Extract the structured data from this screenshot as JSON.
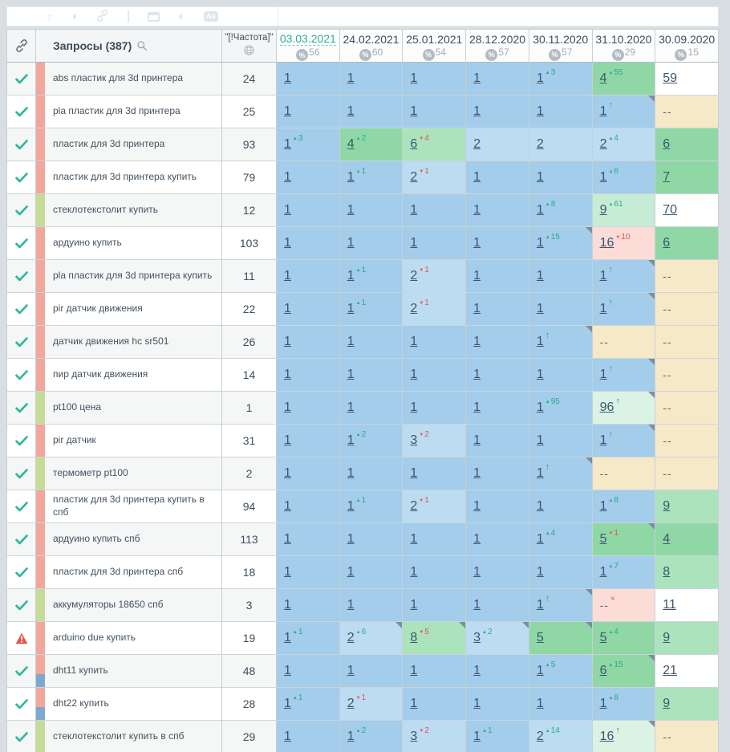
{
  "colors": {
    "accent_teal": "#2fae92",
    "delta_up": "#2aa98b",
    "delta_down": "#e0564a",
    "pos_top1": "#a3cdea",
    "pos_top3": "#bcdcf2",
    "pos_top10": "#8fd8a6",
    "not_found": "#f6e9c8",
    "dropped": "#fbdcd6",
    "tag_salmon": "#f2a79d",
    "tag_green": "#c6dc96",
    "tag_blue": "#7fa8cd"
  },
  "toolbar": {
    "icons": [
      "sort-icon",
      "circle-icon",
      "link-icon",
      "divider",
      "panel-icon",
      "contrast-icon",
      "text-case-icon"
    ],
    "sort_glyph": "↓↑",
    "circle_glyph": "◑",
    "contrast_glyph": "◐",
    "text_case_glyph": "Aa"
  },
  "header": {
    "queries_title": "Запросы (387)",
    "frequency_label": "\"[!Частота]\"",
    "dates": [
      {
        "label": "03.03.2021",
        "percent": "56",
        "selected": true
      },
      {
        "label": "24.02.2021",
        "percent": "60",
        "selected": false
      },
      {
        "label": "25.01.2021",
        "percent": "54",
        "selected": false
      },
      {
        "label": "28.12.2020",
        "percent": "57",
        "selected": false
      },
      {
        "label": "30.11.2020",
        "percent": "57",
        "selected": false
      },
      {
        "label": "31.10.2020",
        "percent": "29",
        "selected": false
      },
      {
        "label": "30.09.2020",
        "percent": "15",
        "selected": false
      }
    ]
  },
  "rows": [
    {
      "status": "check",
      "tags": [
        "salmon"
      ],
      "keyword": "abs пластик для 3d принтера",
      "frequency": "24",
      "cells": [
        {
          "value": "1",
          "bg": "blue"
        },
        {
          "value": "1",
          "bg": "blue"
        },
        {
          "value": "1",
          "bg": "blue"
        },
        {
          "value": "1",
          "bg": "blue"
        },
        {
          "value": "1",
          "bg": "blue",
          "delta": "3",
          "dir": "up"
        },
        {
          "value": "4",
          "bg": "green",
          "delta": "55",
          "dir": "up"
        },
        {
          "value": "59",
          "bg": "white"
        }
      ]
    },
    {
      "status": "check",
      "tags": [
        "salmon"
      ],
      "keyword": "pla пластик для 3d принтера",
      "frequency": "25",
      "cells": [
        {
          "value": "1",
          "bg": "blue"
        },
        {
          "value": "1",
          "bg": "blue"
        },
        {
          "value": "1",
          "bg": "blue"
        },
        {
          "value": "1",
          "bg": "blue"
        },
        {
          "value": "1",
          "bg": "blue"
        },
        {
          "value": "1",
          "bg": "blue",
          "arrow": "teal",
          "note": true
        },
        {
          "value": "--",
          "bg": "tan"
        }
      ]
    },
    {
      "status": "check",
      "tags": [
        "salmon"
      ],
      "keyword": "пластик для 3d принтера",
      "frequency": "93",
      "cells": [
        {
          "value": "1",
          "bg": "blue",
          "delta": "3",
          "dir": "up"
        },
        {
          "value": "4",
          "bg": "green",
          "delta": "2",
          "dir": "up"
        },
        {
          "value": "6",
          "bg": "lightgreen",
          "delta": "4",
          "dir": "down"
        },
        {
          "value": "2",
          "bg": "lightblue"
        },
        {
          "value": "2",
          "bg": "lightblue"
        },
        {
          "value": "2",
          "bg": "lightblue",
          "delta": "4",
          "dir": "up"
        },
        {
          "value": "6",
          "bg": "green"
        }
      ]
    },
    {
      "status": "check",
      "tags": [
        "salmon"
      ],
      "keyword": "пластик для 3d принтера купить",
      "frequency": "79",
      "cells": [
        {
          "value": "1",
          "bg": "blue"
        },
        {
          "value": "1",
          "bg": "blue",
          "delta": "1",
          "dir": "up"
        },
        {
          "value": "2",
          "bg": "lightblue",
          "delta": "1",
          "dir": "down"
        },
        {
          "value": "1",
          "bg": "blue"
        },
        {
          "value": "1",
          "bg": "blue"
        },
        {
          "value": "1",
          "bg": "blue",
          "delta": "6",
          "dir": "up"
        },
        {
          "value": "7",
          "bg": "green"
        }
      ]
    },
    {
      "status": "check",
      "tags": [
        "green"
      ],
      "keyword": "стеклотекстолит купить",
      "frequency": "12",
      "cells": [
        {
          "value": "1",
          "bg": "blue"
        },
        {
          "value": "1",
          "bg": "blue"
        },
        {
          "value": "1",
          "bg": "blue"
        },
        {
          "value": "1",
          "bg": "blue"
        },
        {
          "value": "1",
          "bg": "blue",
          "delta": "8",
          "dir": "up"
        },
        {
          "value": "9",
          "bg": "mint",
          "delta": "61",
          "dir": "up"
        },
        {
          "value": "70",
          "bg": "white"
        }
      ]
    },
    {
      "status": "check",
      "tags": [
        "salmon"
      ],
      "keyword": "ардуино купить",
      "frequency": "103",
      "cells": [
        {
          "value": "1",
          "bg": "blue"
        },
        {
          "value": "1",
          "bg": "blue"
        },
        {
          "value": "1",
          "bg": "blue"
        },
        {
          "value": "1",
          "bg": "blue"
        },
        {
          "value": "1",
          "bg": "blue",
          "delta": "15",
          "dir": "up",
          "note": true
        },
        {
          "value": "16",
          "bg": "pink",
          "delta": "10",
          "dir": "down"
        },
        {
          "value": "6",
          "bg": "green"
        }
      ]
    },
    {
      "status": "check",
      "tags": [
        "salmon"
      ],
      "keyword": "pla пластик для 3d принтера купить",
      "frequency": "11",
      "cells": [
        {
          "value": "1",
          "bg": "blue"
        },
        {
          "value": "1",
          "bg": "blue",
          "delta": "1",
          "dir": "up"
        },
        {
          "value": "2",
          "bg": "lightblue",
          "delta": "1",
          "dir": "down"
        },
        {
          "value": "1",
          "bg": "blue"
        },
        {
          "value": "1",
          "bg": "blue"
        },
        {
          "value": "1",
          "bg": "blue",
          "arrow": "teal",
          "note": true
        },
        {
          "value": "--",
          "bg": "tan"
        }
      ]
    },
    {
      "status": "check",
      "tags": [
        "salmon"
      ],
      "keyword": "pir датчик движения",
      "frequency": "22",
      "cells": [
        {
          "value": "1",
          "bg": "blue"
        },
        {
          "value": "1",
          "bg": "blue",
          "delta": "1",
          "dir": "up"
        },
        {
          "value": "2",
          "bg": "lightblue",
          "delta": "1",
          "dir": "down"
        },
        {
          "value": "1",
          "bg": "blue"
        },
        {
          "value": "1",
          "bg": "blue"
        },
        {
          "value": "1",
          "bg": "blue",
          "arrow": "teal",
          "note": true
        },
        {
          "value": "--",
          "bg": "tan"
        }
      ]
    },
    {
      "status": "check",
      "tags": [
        "salmon"
      ],
      "keyword": "датчик движения hc sr501",
      "frequency": "26",
      "cells": [
        {
          "value": "1",
          "bg": "blue"
        },
        {
          "value": "1",
          "bg": "blue"
        },
        {
          "value": "1",
          "bg": "blue"
        },
        {
          "value": "1",
          "bg": "blue"
        },
        {
          "value": "1",
          "bg": "blue",
          "arrow": "teal",
          "note": true
        },
        {
          "value": "--",
          "bg": "tan"
        },
        {
          "value": "--",
          "bg": "tan"
        }
      ]
    },
    {
      "status": "check",
      "tags": [
        "salmon"
      ],
      "keyword": "пир датчик движения",
      "frequency": "14",
      "cells": [
        {
          "value": "1",
          "bg": "blue"
        },
        {
          "value": "1",
          "bg": "blue"
        },
        {
          "value": "1",
          "bg": "blue"
        },
        {
          "value": "1",
          "bg": "blue"
        },
        {
          "value": "1",
          "bg": "blue"
        },
        {
          "value": "1",
          "bg": "blue",
          "arrow": "teal",
          "note": true
        },
        {
          "value": "--",
          "bg": "tan"
        }
      ]
    },
    {
      "status": "check",
      "tags": [
        "green"
      ],
      "keyword": "pt100 цена",
      "frequency": "1",
      "cells": [
        {
          "value": "1",
          "bg": "blue"
        },
        {
          "value": "1",
          "bg": "blue"
        },
        {
          "value": "1",
          "bg": "blue"
        },
        {
          "value": "1",
          "bg": "blue"
        },
        {
          "value": "1",
          "bg": "blue",
          "delta": "95",
          "dir": "up"
        },
        {
          "value": "96",
          "bg": "palegreen",
          "arrow": "dark",
          "note": true
        },
        {
          "value": "--",
          "bg": "tan"
        }
      ]
    },
    {
      "status": "check",
      "tags": [
        "salmon"
      ],
      "keyword": "pir датчик",
      "frequency": "31",
      "cells": [
        {
          "value": "1",
          "bg": "blue"
        },
        {
          "value": "1",
          "bg": "blue",
          "delta": "2",
          "dir": "up"
        },
        {
          "value": "3",
          "bg": "lightblue",
          "delta": "2",
          "dir": "down"
        },
        {
          "value": "1",
          "bg": "blue"
        },
        {
          "value": "1",
          "bg": "blue"
        },
        {
          "value": "1",
          "bg": "blue",
          "arrow": "teal",
          "note": true
        },
        {
          "value": "--",
          "bg": "tan"
        }
      ]
    },
    {
      "status": "check",
      "tags": [
        "green"
      ],
      "keyword": "термометр pt100",
      "frequency": "2",
      "cells": [
        {
          "value": "1",
          "bg": "blue"
        },
        {
          "value": "1",
          "bg": "blue"
        },
        {
          "value": "1",
          "bg": "blue"
        },
        {
          "value": "1",
          "bg": "blue"
        },
        {
          "value": "1",
          "bg": "blue",
          "arrow": "teal",
          "note": true
        },
        {
          "value": "--",
          "bg": "tan"
        },
        {
          "value": "--",
          "bg": "tan"
        }
      ]
    },
    {
      "status": "check",
      "tags": [
        "salmon"
      ],
      "keyword": "пластик для 3d принтера купить в спб",
      "frequency": "94",
      "cells": [
        {
          "value": "1",
          "bg": "blue"
        },
        {
          "value": "1",
          "bg": "blue",
          "delta": "1",
          "dir": "up"
        },
        {
          "value": "2",
          "bg": "lightblue",
          "delta": "1",
          "dir": "down"
        },
        {
          "value": "1",
          "bg": "blue"
        },
        {
          "value": "1",
          "bg": "blue"
        },
        {
          "value": "1",
          "bg": "blue",
          "delta": "8",
          "dir": "up"
        },
        {
          "value": "9",
          "bg": "lightgreen"
        }
      ]
    },
    {
      "status": "check",
      "tags": [
        "salmon"
      ],
      "keyword": "ардуино купить спб",
      "frequency": "113",
      "cells": [
        {
          "value": "1",
          "bg": "blue"
        },
        {
          "value": "1",
          "bg": "blue"
        },
        {
          "value": "1",
          "bg": "blue"
        },
        {
          "value": "1",
          "bg": "blue"
        },
        {
          "value": "1",
          "bg": "blue",
          "delta": "4",
          "dir": "up"
        },
        {
          "value": "5",
          "bg": "green",
          "delta": "1",
          "dir": "down",
          "note": true
        },
        {
          "value": "4",
          "bg": "green"
        }
      ]
    },
    {
      "status": "check",
      "tags": [
        "salmon"
      ],
      "keyword": "пластик для 3d принтера спб",
      "frequency": "18",
      "cells": [
        {
          "value": "1",
          "bg": "blue"
        },
        {
          "value": "1",
          "bg": "blue"
        },
        {
          "value": "1",
          "bg": "blue"
        },
        {
          "value": "1",
          "bg": "blue"
        },
        {
          "value": "1",
          "bg": "blue"
        },
        {
          "value": "1",
          "bg": "blue",
          "delta": "7",
          "dir": "up"
        },
        {
          "value": "8",
          "bg": "lightgreen"
        }
      ]
    },
    {
      "status": "check",
      "tags": [
        "green"
      ],
      "keyword": "аккумуляторы 18650 спб",
      "frequency": "3",
      "cells": [
        {
          "value": "1",
          "bg": "blue"
        },
        {
          "value": "1",
          "bg": "blue"
        },
        {
          "value": "1",
          "bg": "blue"
        },
        {
          "value": "1",
          "bg": "blue"
        },
        {
          "value": "1",
          "bg": "blue",
          "arrow": "teal",
          "note": true
        },
        {
          "value": "--",
          "bg": "pink",
          "supx": true
        },
        {
          "value": "11",
          "bg": "white"
        }
      ]
    },
    {
      "status": "warning",
      "tags": [
        "salmon"
      ],
      "keyword": "arduino due купить",
      "frequency": "19",
      "cells": [
        {
          "value": "1",
          "bg": "blue",
          "delta": "1",
          "dir": "up"
        },
        {
          "value": "2",
          "bg": "lightblue",
          "delta": "6",
          "dir": "up",
          "note": true
        },
        {
          "value": "8",
          "bg": "lightgreen",
          "delta": "5",
          "dir": "down",
          "note": true
        },
        {
          "value": "3",
          "bg": "lightblue",
          "delta": "2",
          "dir": "up",
          "note": true
        },
        {
          "value": "5",
          "bg": "green",
          "note": true
        },
        {
          "value": "5",
          "bg": "green",
          "delta": "4",
          "dir": "up"
        },
        {
          "value": "9",
          "bg": "lightgreen"
        }
      ]
    },
    {
      "status": "check",
      "tags": [
        "salmon",
        "blue"
      ],
      "keyword": "dht11 купить",
      "frequency": "48",
      "cells": [
        {
          "value": "1",
          "bg": "blue"
        },
        {
          "value": "1",
          "bg": "blue"
        },
        {
          "value": "1",
          "bg": "blue"
        },
        {
          "value": "1",
          "bg": "blue"
        },
        {
          "value": "1",
          "bg": "blue",
          "delta": "5",
          "dir": "up"
        },
        {
          "value": "6",
          "bg": "green",
          "delta": "15",
          "dir": "up",
          "note": true
        },
        {
          "value": "21",
          "bg": "white"
        }
      ]
    },
    {
      "status": "check",
      "tags": [
        "salmon",
        "blue"
      ],
      "keyword": "dht22 купить",
      "frequency": "28",
      "cells": [
        {
          "value": "1",
          "bg": "blue",
          "delta": "1",
          "dir": "up"
        },
        {
          "value": "2",
          "bg": "lightblue",
          "delta": "1",
          "dir": "down"
        },
        {
          "value": "1",
          "bg": "blue"
        },
        {
          "value": "1",
          "bg": "blue"
        },
        {
          "value": "1",
          "bg": "blue"
        },
        {
          "value": "1",
          "bg": "blue",
          "delta": "8",
          "dir": "up"
        },
        {
          "value": "9",
          "bg": "lightgreen"
        }
      ]
    },
    {
      "status": "check",
      "tags": [
        "green"
      ],
      "keyword": "стеклотекстолит купить в спб",
      "frequency": "29",
      "cells": [
        {
          "value": "1",
          "bg": "blue"
        },
        {
          "value": "1",
          "bg": "blue",
          "delta": "2",
          "dir": "up"
        },
        {
          "value": "3",
          "bg": "lightblue",
          "delta": "2",
          "dir": "down"
        },
        {
          "value": "1",
          "bg": "blue",
          "delta": "1",
          "dir": "up"
        },
        {
          "value": "2",
          "bg": "lightblue",
          "delta": "14",
          "dir": "up"
        },
        {
          "value": "16",
          "bg": "palegreen",
          "arrow": "dark",
          "note": true
        },
        {
          "value": "--",
          "bg": "tan"
        }
      ]
    }
  ]
}
